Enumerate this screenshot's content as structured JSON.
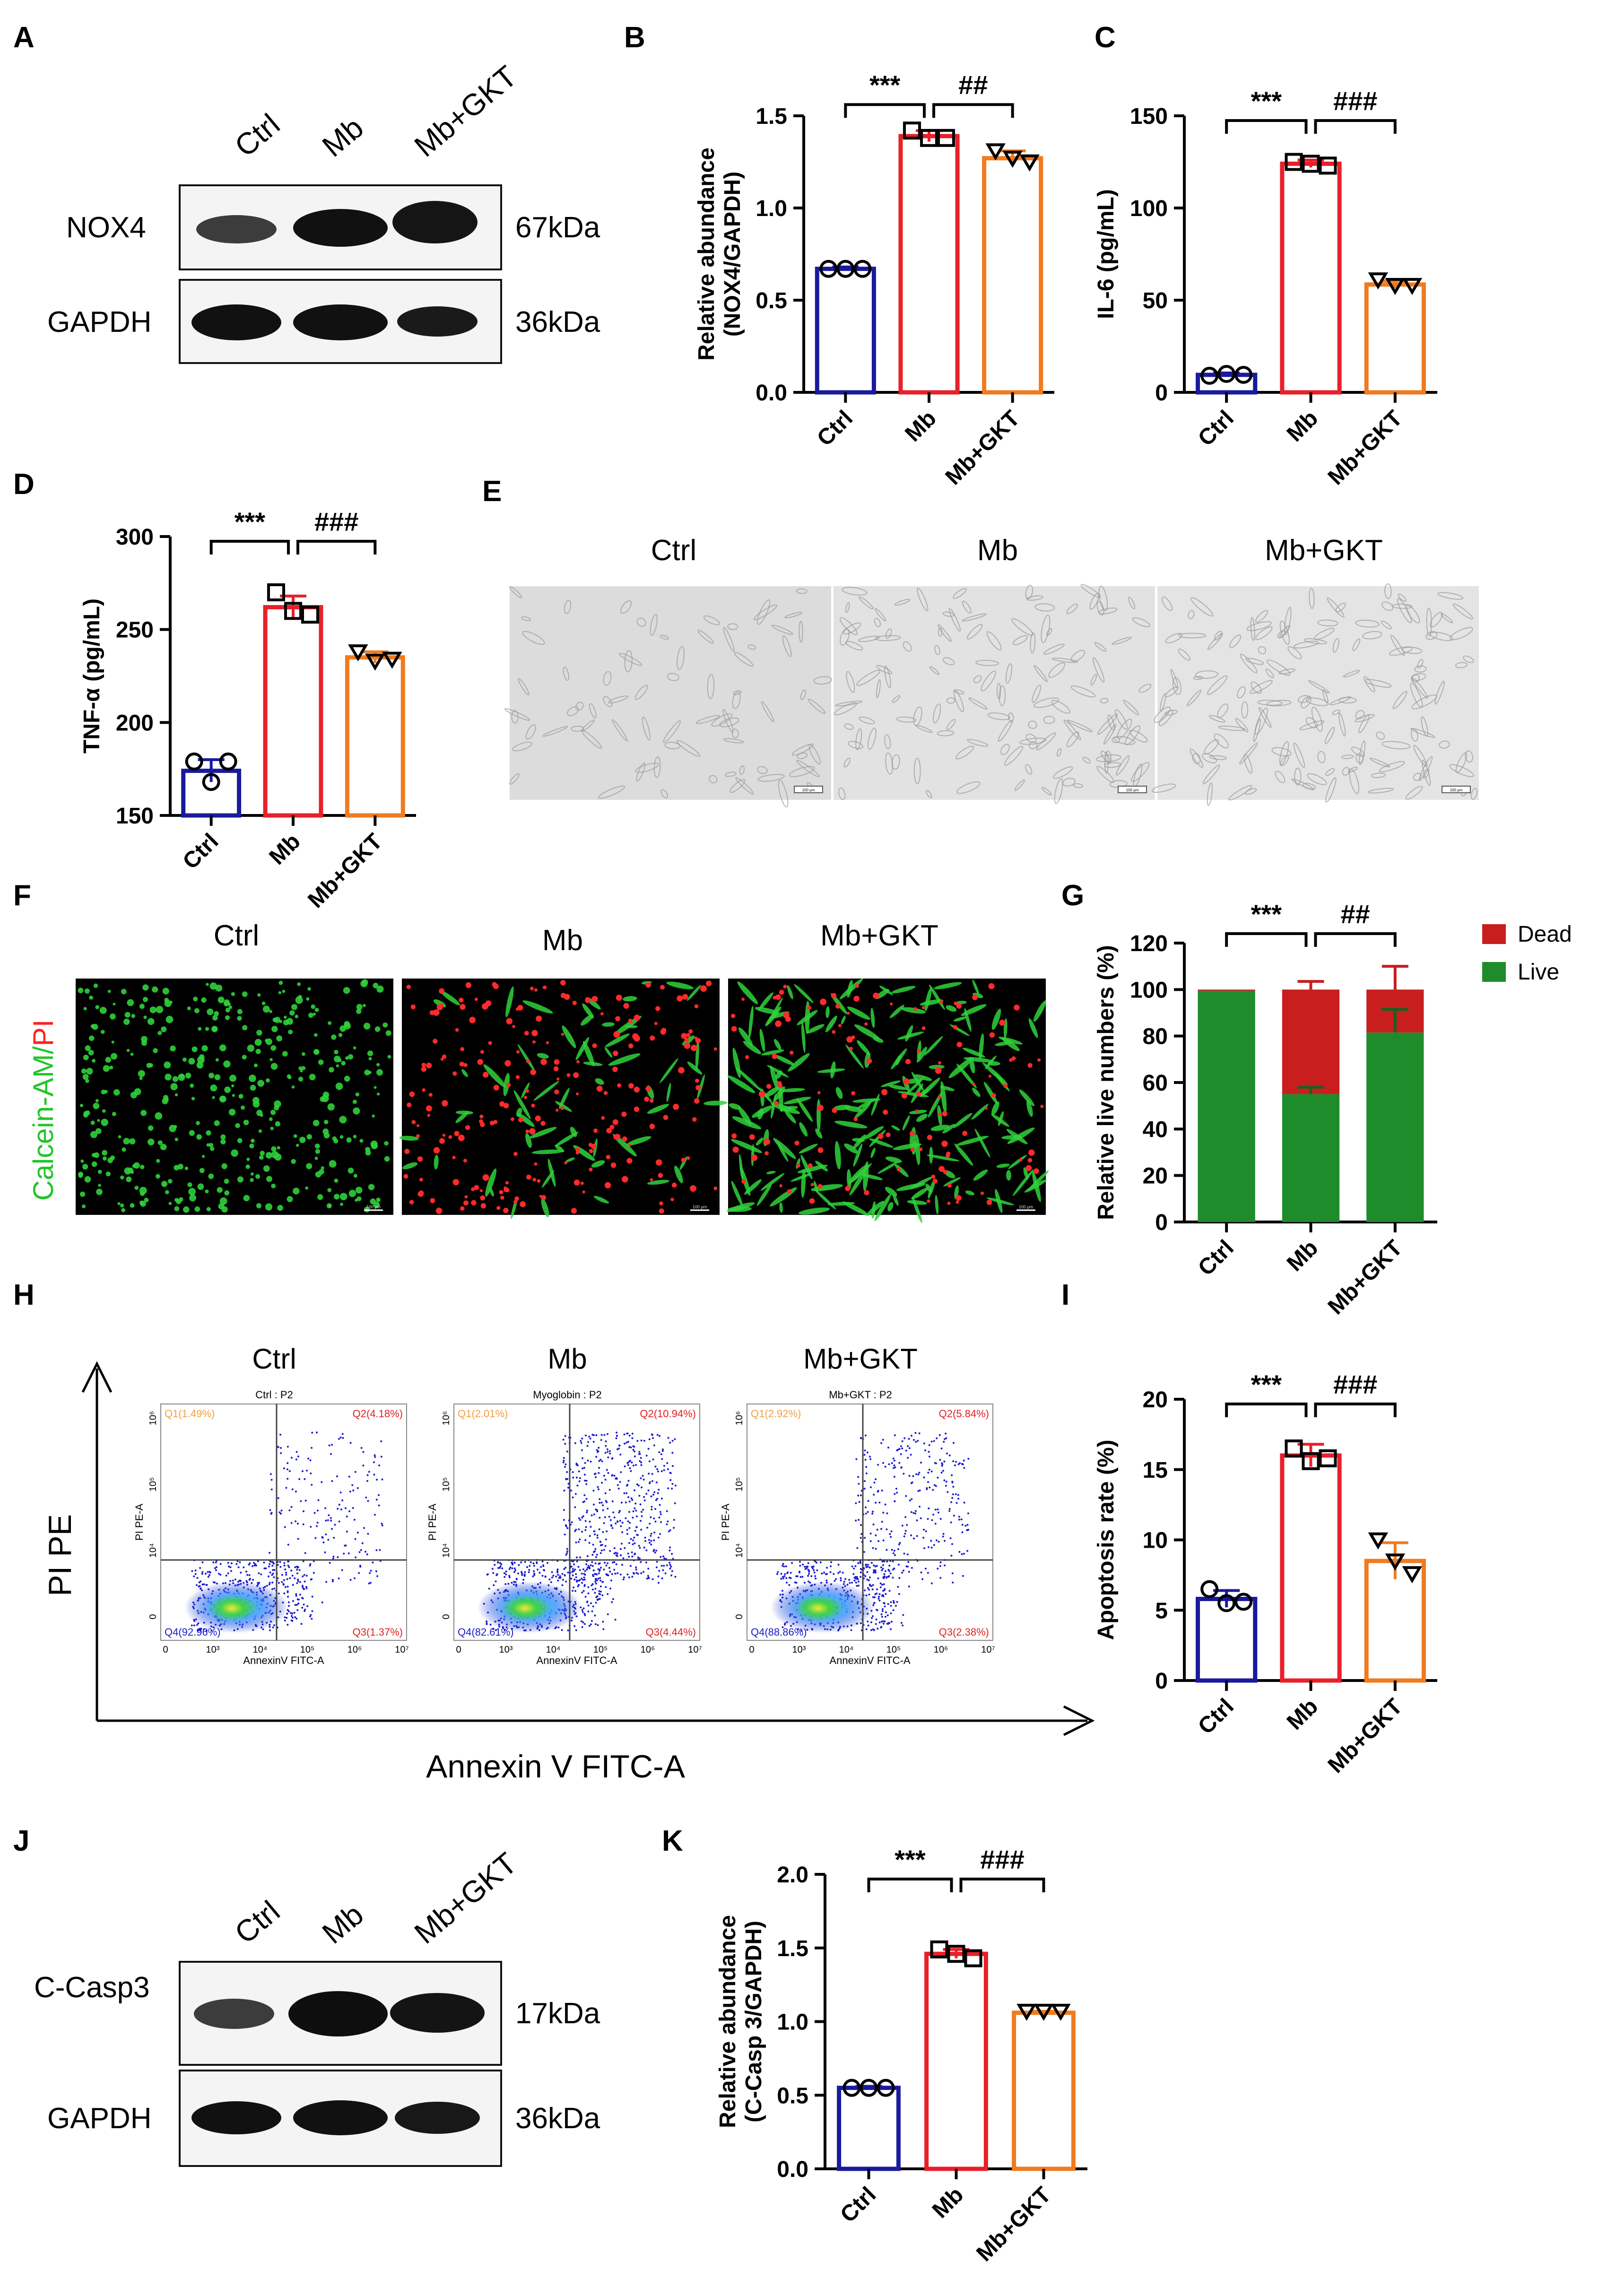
{
  "colors": {
    "ctrl": "#1a1a9e",
    "mb": "#e8202a",
    "gkt": "#f07b20",
    "dead": "#c81e1e",
    "live": "#1e8c2a",
    "fluor_green": "#2fd23a",
    "fluor_red": "#ff2a2a",
    "axis": "#000000"
  },
  "panels": {
    "A": {
      "letter": "A",
      "lanes": [
        "Ctrl",
        "Mb",
        "Mb+GKT"
      ],
      "rows": [
        {
          "protein": "NOX4",
          "size": "67kDa"
        },
        {
          "protein": "GAPDH",
          "size": "36kDa"
        }
      ]
    },
    "E": {
      "letter": "E",
      "images": [
        "Ctrl",
        "Mb",
        "Mb+GKT"
      ],
      "scale_bar": "100 μm"
    },
    "F": {
      "letter": "F",
      "images": [
        "Ctrl",
        "Mb",
        "Mb+GKT"
      ],
      "ylabel_part1": "Calcein-AM/",
      "ylabel_part2": "PI",
      "scale_bar": "100 μm"
    },
    "H": {
      "letter": "H",
      "x_axis": "Annexin V FITC-A",
      "y_axis": "PI  PE",
      "plots": [
        {
          "label": "Ctrl",
          "title": "Ctrl : P2",
          "q1": "Q1(1.49%)",
          "q2": "Q2(4.18%)",
          "q3": "Q3(1.37%)",
          "q4": "Q4(92.96%)"
        },
        {
          "label": "Mb",
          "title": "Myoglobin : P2",
          "q1": "Q1(2.01%)",
          "q2": "Q2(10.94%)",
          "q3": "Q3(4.44%)",
          "q4": "Q4(82.61%)"
        },
        {
          "label": "Mb+GKT",
          "title": "Mb+GKT : P2",
          "q1": "Q1(2.92%)",
          "q2": "Q2(5.84%)",
          "q3": "Q3(2.38%)",
          "q4": "Q4(88.86%)"
        }
      ],
      "inner_xlabel": "AnnexinV FITC-A",
      "inner_ylabel": "PI PE-A",
      "xticks": [
        "0",
        "10³",
        "10⁴",
        "10⁵",
        "10⁶",
        "10⁷"
      ],
      "yticks": [
        "0",
        "10⁴",
        "10⁵",
        "10⁶"
      ]
    },
    "J": {
      "letter": "J",
      "lanes": [
        "Ctrl",
        "Mb",
        "Mb+GKT"
      ],
      "rows": [
        {
          "protein": "C-Casp3",
          "size": "17kDa"
        },
        {
          "protein": "GAPDH",
          "size": "36kDa"
        }
      ]
    }
  },
  "chart_data": [
    {
      "id": "B",
      "letter": "B",
      "type": "bar",
      "categories": [
        "Ctrl",
        "Mb",
        "Mb+GKT"
      ],
      "values": [
        0.67,
        1.39,
        1.27
      ],
      "errors": [
        0.01,
        0.03,
        0.04
      ],
      "points": [
        [
          0.67,
          0.67,
          0.67
        ],
        [
          1.42,
          1.38,
          1.38
        ],
        [
          1.31,
          1.27,
          1.25
        ]
      ],
      "ylabel": "Relative abundance",
      "ylabel2": "(NOX4/GAPDH)",
      "ylim": [
        0,
        1.5
      ],
      "yticks": [
        "0.0",
        "0.5",
        "1.0",
        "1.5"
      ],
      "sig": [
        "***",
        "##"
      ]
    },
    {
      "id": "C",
      "letter": "C",
      "type": "bar",
      "categories": [
        "Ctrl",
        "Mb",
        "Mb+GKT"
      ],
      "values": [
        9.5,
        124,
        58.5
      ],
      "errors": [
        1,
        2,
        2
      ],
      "points": [
        [
          9,
          10,
          9.5
        ],
        [
          125,
          124,
          123
        ],
        [
          61,
          58,
          58
        ]
      ],
      "ylabel": "IL-6  (pg/mL)",
      "ylabel2": "",
      "ylim": [
        0,
        150
      ],
      "yticks": [
        "0",
        "50",
        "100",
        "150"
      ],
      "sig": [
        "***",
        "###"
      ]
    },
    {
      "id": "D",
      "letter": "D",
      "type": "bar",
      "categories": [
        "Ctrl",
        "Mb",
        "Mb+GKT"
      ],
      "values": [
        174,
        262,
        235
      ],
      "errors": [
        6,
        6,
        3
      ],
      "points": [
        [
          179,
          168,
          179
        ],
        [
          270,
          260,
          258
        ],
        [
          238,
          233,
          234
        ]
      ],
      "ylabel": "TNF-α  (pg/mL)",
      "ylabel2": "",
      "ylim": [
        150,
        300
      ],
      "yticks": [
        "150",
        "200",
        "250",
        "300"
      ],
      "sig": [
        "***",
        "###"
      ]
    },
    {
      "id": "G",
      "letter": "G",
      "type": "stacked-bar",
      "categories": [
        "Ctrl",
        "Mb",
        "Mb+GKT"
      ],
      "series": [
        {
          "name": "Live",
          "values": [
            99.5,
            55,
            81.5
          ],
          "errors": [
            0.5,
            3,
            10
          ]
        },
        {
          "name": "Dead",
          "values": [
            0.5,
            45,
            18.5
          ],
          "errors": [
            0,
            3.5,
            10
          ]
        }
      ],
      "ylabel": "Relative live numbers (%)",
      "ylim": [
        0,
        120
      ],
      "yticks": [
        "0",
        "20",
        "40",
        "60",
        "80",
        "100",
        "120"
      ],
      "legend": [
        "Dead",
        "Live"
      ],
      "sig": [
        "***",
        "##"
      ]
    },
    {
      "id": "I",
      "letter": "I",
      "type": "bar",
      "categories": [
        "Ctrl",
        "Mb",
        "Mb+GKT"
      ],
      "values": [
        5.8,
        16.0,
        8.5
      ],
      "errors": [
        0.6,
        0.8,
        1.3
      ],
      "points": [
        [
          6.5,
          5.5,
          5.6
        ],
        [
          16.5,
          15.6,
          15.8
        ],
        [
          10.0,
          8.5,
          7.6
        ]
      ],
      "ylabel": "Apoptosis rate (%)",
      "ylabel2": "",
      "ylim": [
        0,
        20
      ],
      "yticks": [
        "0",
        "5",
        "10",
        "15",
        "20"
      ],
      "sig": [
        "***",
        "###"
      ]
    },
    {
      "id": "K",
      "letter": "K",
      "type": "bar",
      "categories": [
        "Ctrl",
        "Mb",
        "Mb+GKT"
      ],
      "values": [
        0.55,
        1.46,
        1.06
      ],
      "errors": [
        0.01,
        0.03,
        0.01
      ],
      "points": [
        [
          0.55,
          0.55,
          0.55
        ],
        [
          1.49,
          1.46,
          1.43
        ],
        [
          1.07,
          1.07,
          1.07
        ]
      ],
      "ylabel": "Relative abundance",
      "ylabel2": "(C-Casp 3/GAPDH)",
      "ylim": [
        0,
        2.0
      ],
      "yticks": [
        "0.0",
        "0.5",
        "1.0",
        "1.5",
        "2.0"
      ],
      "sig": [
        "***",
        "###"
      ]
    }
  ]
}
